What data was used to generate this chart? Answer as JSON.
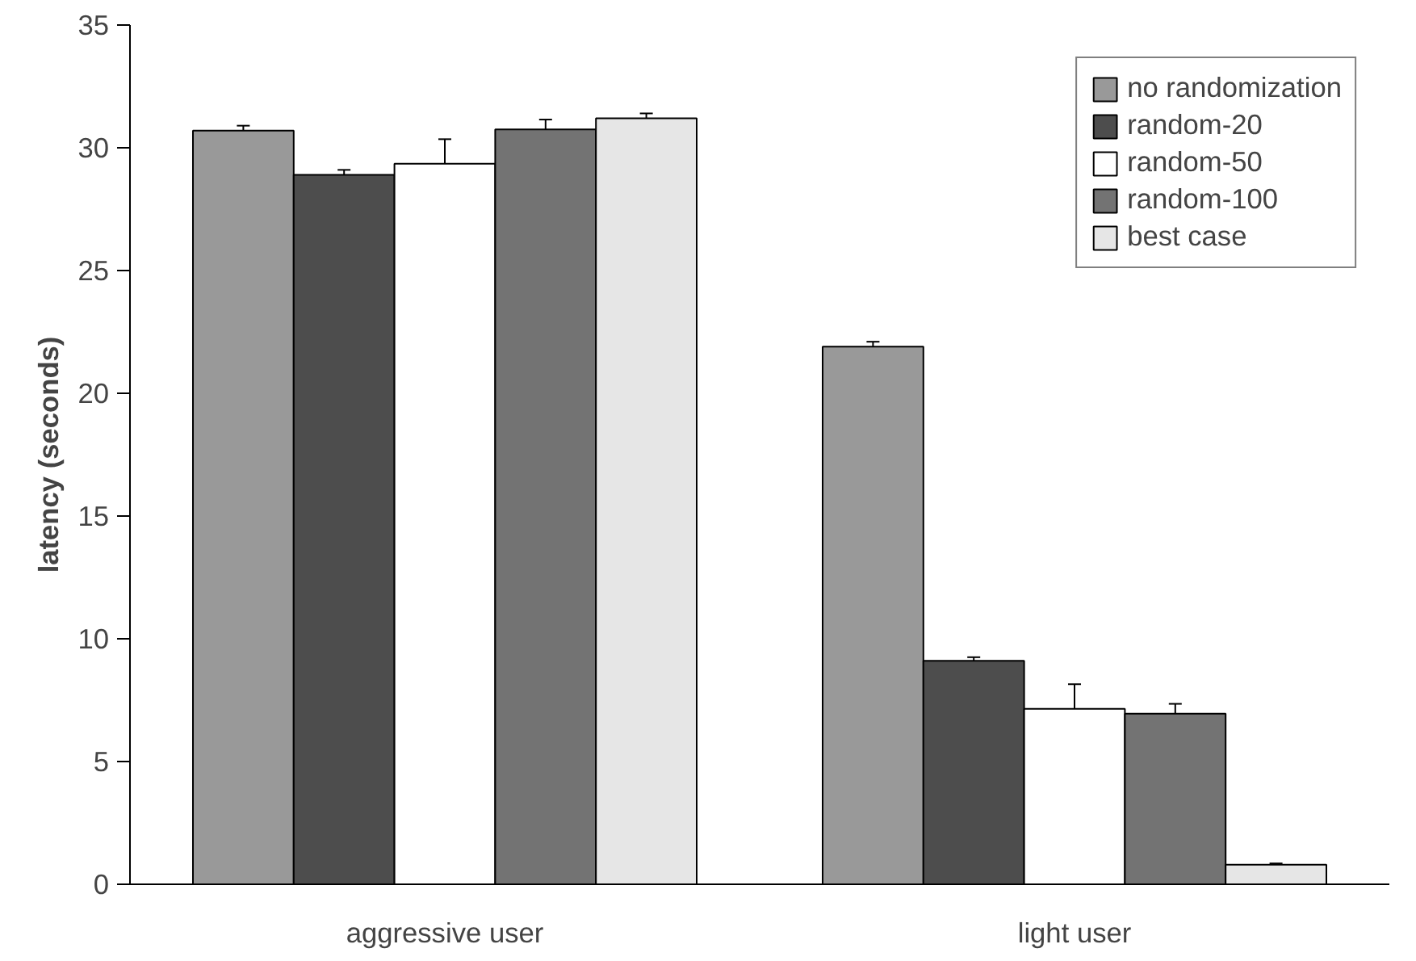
{
  "chart_data": {
    "type": "bar",
    "ylabel": "latency (seconds)",
    "categories": [
      "aggressive user",
      "light user"
    ],
    "series": [
      {
        "name": "no randomization",
        "color": "#999999",
        "values": [
          30.7,
          21.9
        ],
        "errors": [
          0.2,
          0.2
        ]
      },
      {
        "name": "random-20",
        "color": "#4d4d4d",
        "values": [
          28.9,
          9.1
        ],
        "errors": [
          0.2,
          0.15
        ]
      },
      {
        "name": "random-50",
        "color": "#ffffff",
        "values": [
          29.35,
          7.15
        ],
        "errors": [
          1.0,
          1.0
        ]
      },
      {
        "name": "random-100",
        "color": "#737373",
        "values": [
          30.75,
          6.95
        ],
        "errors": [
          0.4,
          0.4
        ]
      },
      {
        "name": "best case",
        "color": "#e6e6e6",
        "values": [
          31.2,
          0.8
        ],
        "errors": [
          0.2,
          0.05
        ]
      }
    ],
    "ylim": [
      0,
      35
    ],
    "yticks": [
      0,
      5,
      10,
      15,
      20,
      25,
      30,
      35
    ],
    "grid": false,
    "legend": "top right"
  }
}
